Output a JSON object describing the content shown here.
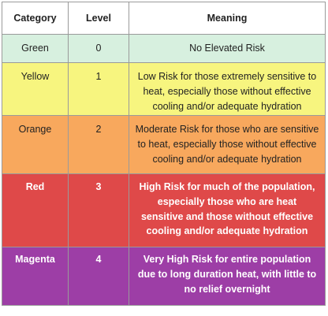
{
  "headers": {
    "category": "Category",
    "level": "Level",
    "meaning": "Meaning"
  },
  "rows": [
    {
      "category": "Green",
      "level": "0",
      "meaning": "No Elevated Risk",
      "color": "#d7f0df"
    },
    {
      "category": "Yellow",
      "level": "1",
      "meaning": "Low Risk for those extremely sensitive to heat, especially those without effective cooling and/or adequate hydration",
      "color": "#f7f57f"
    },
    {
      "category": "Orange",
      "level": "2",
      "meaning": "Moderate Risk for those who are sensitive to heat, especially those without effective cooling and/or adequate hydration",
      "color": "#f8a85d"
    },
    {
      "category": "Red",
      "level": "3",
      "meaning": "High Risk for much of the population, especially those who are heat sensitive and those without effective cooling and/or adequate hydration",
      "color": "#df4949"
    },
    {
      "category": "Magenta",
      "level": "4",
      "meaning": "Very High Risk for entire population due to long duration heat, with little to no relief overnight",
      "color": "#9d3ea6"
    }
  ]
}
